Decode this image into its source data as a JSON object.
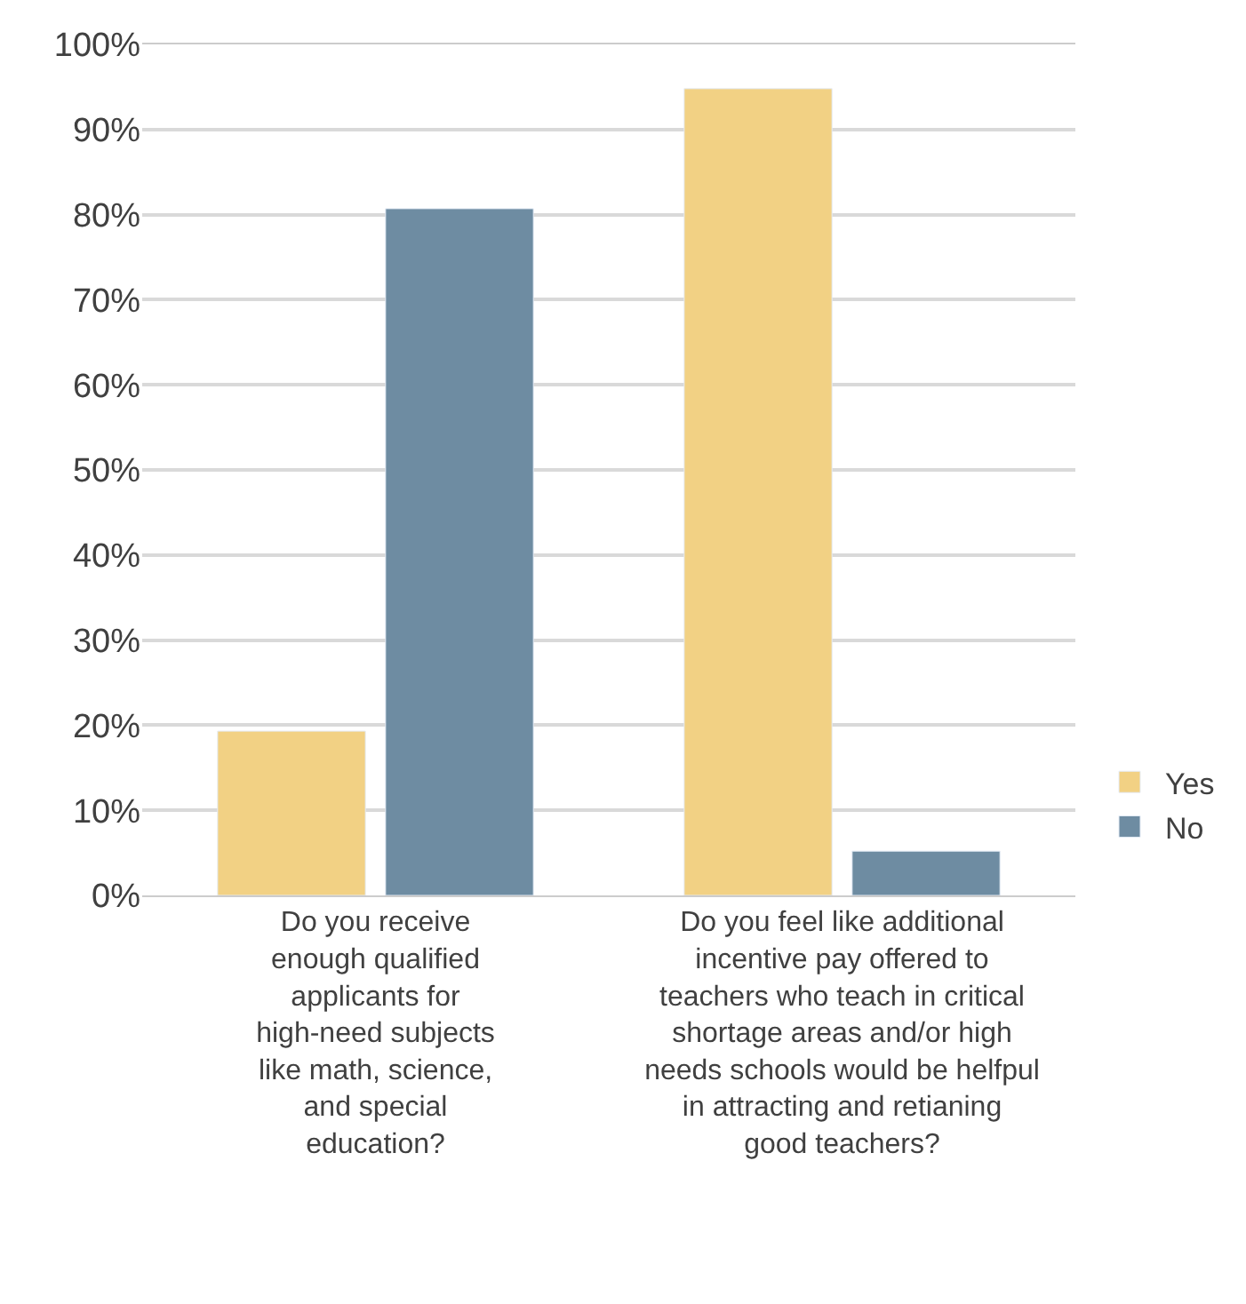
{
  "chart_data": {
    "type": "bar",
    "categories": [
      "Do you receive enough qualified applicants for high-need subjects like math, science, and special education?",
      "Do you feel like additional incentive pay offered to teachers who teach in critical shortage areas and/or high needs schools would be helfpul in attracting and retianing good teachers?"
    ],
    "series": [
      {
        "name": "Yes",
        "color": "#f2d184",
        "values": [
          19.3,
          94.8
        ]
      },
      {
        "name": "No",
        "color": "#6e8ca2",
        "values": [
          80.7,
          5.2
        ]
      }
    ],
    "ylim": [
      0,
      100
    ],
    "yticks": [
      {
        "value": 0,
        "label": "0%"
      },
      {
        "value": 10,
        "label": "10%"
      },
      {
        "value": 20,
        "label": "20%"
      },
      {
        "value": 30,
        "label": "30%"
      },
      {
        "value": 40,
        "label": "40%"
      },
      {
        "value": 50,
        "label": "50%"
      },
      {
        "value": 60,
        "label": "60%"
      },
      {
        "value": 70,
        "label": "70%"
      },
      {
        "value": 80,
        "label": "80%"
      },
      {
        "value": 90,
        "label": "90%"
      },
      {
        "value": 100,
        "label": "100%"
      }
    ],
    "grid": "y",
    "legend": "right"
  }
}
